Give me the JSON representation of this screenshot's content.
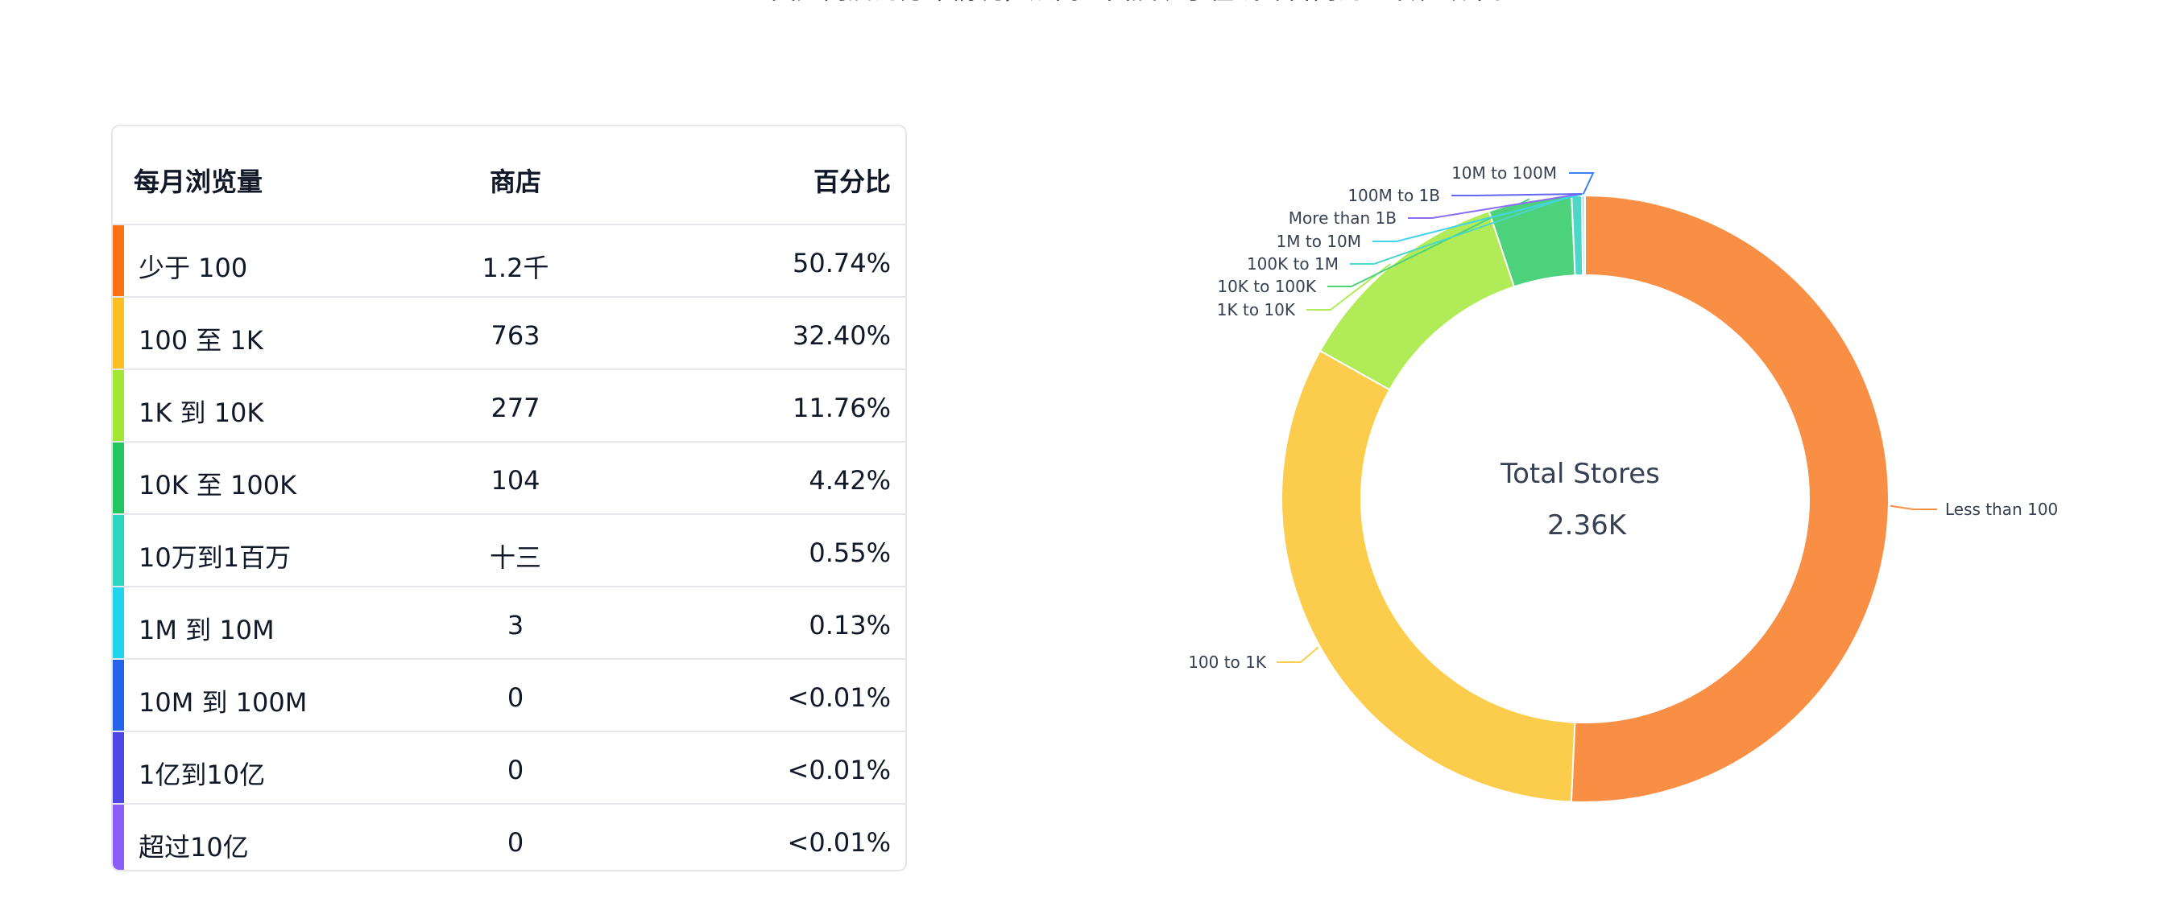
{
  "header": {
    "description_fragment": "国产商店的分布情况，从而全面展现了在线零售商的业绩和效率。"
  },
  "table": {
    "col_views": "每月浏览量",
    "col_stores": "商店",
    "col_pct": "百分比",
    "rows": [
      {
        "views": "少于 100",
        "stores": "1.2千",
        "pct": "50.74%",
        "color": "#f97316"
      },
      {
        "views": "100 至 1K",
        "stores": "763",
        "pct": "32.40%",
        "color": "#fbbf24"
      },
      {
        "views": "1K 到 10K",
        "stores": "277",
        "pct": "11.76%",
        "color": "#a3e635"
      },
      {
        "views": "10K 至 100K",
        "stores": "104",
        "pct": "4.42%",
        "color": "#22c55e"
      },
      {
        "views": "10万到1百万",
        "stores": "十三",
        "pct": "0.55%",
        "color": "#2dd4bf"
      },
      {
        "views": "1M 到 10M",
        "stores": "3",
        "pct": "0.13%",
        "color": "#22d3ee"
      },
      {
        "views": "10M 到 100M",
        "stores": "0",
        "pct": "<0.01%",
        "color": "#2563eb"
      },
      {
        "views": "1亿到10亿",
        "stores": "0",
        "pct": "<0.01%",
        "color": "#4f46e5"
      },
      {
        "views": "超过10亿",
        "stores": "0",
        "pct": "<0.01%",
        "color": "#8b5cf6"
      }
    ]
  },
  "chart_data": {
    "type": "pie",
    "variant": "donut",
    "center_title": "Total Stores",
    "center_value": "2.36K",
    "categories": [
      "Less than 100",
      "100 to 1K",
      "1K to 10K",
      "10K to 100K",
      "100K to 1M",
      "1M to 10M",
      "More than 1B",
      "100M to 1B",
      "10M to 100M"
    ],
    "values": [
      50.74,
      32.4,
      11.76,
      4.42,
      0.55,
      0.13,
      0.01,
      0.01,
      0.01
    ],
    "colors": [
      "#f98f45",
      "#fccc4d",
      "#b2eb58",
      "#4cd27b",
      "#4ed6c8",
      "#45d3ec",
      "#8b6cf6",
      "#6366f1",
      "#3b82f6"
    ]
  }
}
